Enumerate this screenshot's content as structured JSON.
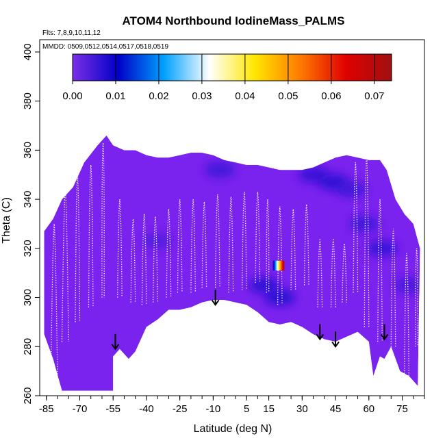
{
  "chart_data": {
    "type": "heatmap",
    "title": "ATOM4 Northbound IodineMass_PALMS",
    "flights_label": "Flts: 7,8,9,10,11,12",
    "dates_label": "MMDD: 0509,0512,0514,0517,0518,0519",
    "xlabel": "Latitude (deg N)",
    "ylabel": "Theta (C)",
    "xlim": [
      -88,
      85
    ],
    "ylim": [
      260,
      405
    ],
    "x_ticks": [
      "-85",
      "-70",
      "-55",
      "-40",
      "-25",
      "-10",
      "5",
      "15",
      "30",
      "45",
      "60",
      "75"
    ],
    "y_ticks": [
      "260",
      "280",
      "300",
      "320",
      "340",
      "360",
      "380",
      "400"
    ],
    "colorbar": {
      "range": [
        0,
        0.074
      ],
      "ticks": [
        "0.00",
        "0.01",
        "0.02",
        "0.03",
        "0.04",
        "0.05",
        "0.06",
        "0.07"
      ],
      "colors": [
        "#7b2fe6",
        "#0000c8",
        "#00a0ff",
        "#ffffff",
        "#ffe600",
        "#ff7a00",
        "#e00000",
        "#a01010"
      ]
    },
    "background_color": "#7a22ee",
    "domain_top": [
      [
        -86,
        327
      ],
      [
        -82,
        332
      ],
      [
        -78,
        340
      ],
      [
        -73,
        345
      ],
      [
        -68,
        355
      ],
      [
        -62,
        362
      ],
      [
        -58,
        366
      ],
      [
        -55,
        362
      ],
      [
        -50,
        360
      ],
      [
        -45,
        360
      ],
      [
        -40,
        358
      ],
      [
        -35,
        357
      ],
      [
        -30,
        357
      ],
      [
        -25,
        358
      ],
      [
        -20,
        359
      ],
      [
        -15,
        359
      ],
      [
        -10,
        358
      ],
      [
        -5,
        356
      ],
      [
        0,
        355
      ],
      [
        5,
        354
      ],
      [
        10,
        354
      ],
      [
        15,
        353
      ],
      [
        20,
        352
      ],
      [
        25,
        352
      ],
      [
        30,
        352
      ],
      [
        35,
        353
      ],
      [
        40,
        355
      ],
      [
        45,
        357
      ],
      [
        50,
        358
      ],
      [
        55,
        357
      ],
      [
        60,
        356
      ],
      [
        65,
        356
      ],
      [
        68,
        352
      ],
      [
        72,
        340
      ],
      [
        76,
        334
      ],
      [
        80,
        330
      ],
      [
        83,
        320
      ]
    ],
    "domain_bottom": [
      [
        -86,
        285
      ],
      [
        -82,
        275
      ],
      [
        -78,
        262
      ],
      [
        -55,
        262
      ],
      [
        -55,
        276
      ],
      [
        -52,
        279
      ],
      [
        -48,
        275
      ],
      [
        -45,
        278
      ],
      [
        -40,
        288
      ],
      [
        -35,
        291
      ],
      [
        -30,
        295
      ],
      [
        -25,
        295
      ],
      [
        -20,
        296
      ],
      [
        -15,
        298
      ],
      [
        -10,
        299
      ],
      [
        -5,
        299
      ],
      [
        0,
        298
      ],
      [
        5,
        297
      ],
      [
        10,
        294
      ],
      [
        15,
        290
      ],
      [
        20,
        289
      ],
      [
        25,
        290
      ],
      [
        30,
        288
      ],
      [
        35,
        285
      ],
      [
        40,
        283
      ],
      [
        45,
        282
      ],
      [
        50,
        284
      ],
      [
        55,
        286
      ],
      [
        60,
        282
      ],
      [
        62,
        268
      ],
      [
        65,
        276
      ],
      [
        67,
        275
      ],
      [
        70,
        280
      ],
      [
        74,
        270
      ],
      [
        78,
        268
      ],
      [
        82,
        264
      ]
    ],
    "hotspots": [
      {
        "lat": -7,
        "theta": 352,
        "value": 0.006
      },
      {
        "lat": 35,
        "theta": 350,
        "value": 0.007
      },
      {
        "lat": 44,
        "theta": 347,
        "value": 0.008
      },
      {
        "lat": 52,
        "theta": 344,
        "value": 0.006
      },
      {
        "lat": 66,
        "theta": 320,
        "value": 0.007
      },
      {
        "lat": 20,
        "theta": 300,
        "value": 0.009
      },
      {
        "lat": 13,
        "theta": 305,
        "value": 0.008
      },
      {
        "lat": -35,
        "theta": 323,
        "value": 0.004
      },
      {
        "lat": 58,
        "theta": 330,
        "value": 0.006
      },
      {
        "lat": 78,
        "theta": 305,
        "value": 0.005
      }
    ],
    "high_value_patch": {
      "lat": [
        16.5,
        22
      ],
      "theta": [
        311,
        315
      ],
      "value_range": [
        0.0,
        0.074
      ]
    },
    "flight_tracks": [
      {
        "lat0": -83,
        "lat1": -80,
        "top": 330,
        "bottom": 268
      },
      {
        "lat0": -78,
        "lat1": -75,
        "top": 345,
        "bottom": 282
      },
      {
        "lat0": -72,
        "lat1": -70,
        "top": 350,
        "bottom": 290
      },
      {
        "lat0": -66,
        "lat1": -64,
        "top": 354,
        "bottom": 296
      },
      {
        "lat0": -60,
        "lat1": -59,
        "top": 363,
        "bottom": 300
      },
      {
        "lat0": -53,
        "lat1": -51,
        "top": 340,
        "bottom": 300
      },
      {
        "lat0": -47,
        "lat1": -45,
        "top": 332,
        "bottom": 298
      },
      {
        "lat0": -42,
        "lat1": -40,
        "top": 334,
        "bottom": 297
      },
      {
        "lat0": -37,
        "lat1": -35,
        "top": 333,
        "bottom": 298
      },
      {
        "lat0": -31,
        "lat1": -29,
        "top": 336,
        "bottom": 300
      },
      {
        "lat0": -26,
        "lat1": -24,
        "top": 340,
        "bottom": 302
      },
      {
        "lat0": -20,
        "lat1": -18,
        "top": 340,
        "bottom": 302
      },
      {
        "lat0": -15,
        "lat1": -13,
        "top": 339,
        "bottom": 304
      },
      {
        "lat0": -9,
        "lat1": -7,
        "top": 342,
        "bottom": 304
      },
      {
        "lat0": -3,
        "lat1": -1,
        "top": 341,
        "bottom": 302
      },
      {
        "lat0": 3,
        "lat1": 5,
        "top": 343,
        "bottom": 303
      },
      {
        "lat0": 9,
        "lat1": 11,
        "top": 343,
        "bottom": 306
      },
      {
        "lat0": 14,
        "lat1": 15,
        "top": 340,
        "bottom": 302
      },
      {
        "lat0": 19,
        "lat1": 21,
        "top": 337,
        "bottom": 297
      },
      {
        "lat0": 25,
        "lat1": 27,
        "top": 336,
        "bottom": 303
      },
      {
        "lat0": 31,
        "lat1": 33,
        "top": 338,
        "bottom": 305
      },
      {
        "lat0": 37,
        "lat1": 39,
        "top": 324,
        "bottom": 296
      },
      {
        "lat0": 43,
        "lat1": 45,
        "top": 324,
        "bottom": 296
      },
      {
        "lat0": 48,
        "lat1": 50,
        "top": 322,
        "bottom": 298
      },
      {
        "lat0": 53,
        "lat1": 55,
        "top": 355,
        "bottom": 302
      },
      {
        "lat0": 58,
        "lat1": 60,
        "top": 358,
        "bottom": 288
      },
      {
        "lat0": 64,
        "lat1": 66,
        "top": 340,
        "bottom": 282
      },
      {
        "lat0": 70,
        "lat1": 72,
        "top": 328,
        "bottom": 280
      },
      {
        "lat0": 76,
        "lat1": 78,
        "top": 318,
        "bottom": 268
      },
      {
        "lat0": 81,
        "lat1": 82,
        "top": 320,
        "bottom": 280
      }
    ],
    "arrows": [
      {
        "lat": -54,
        "theta": 279
      },
      {
        "lat": -9,
        "theta": 297
      },
      {
        "lat": 38,
        "theta": 283
      },
      {
        "lat": 45,
        "theta": 280
      },
      {
        "lat": 67,
        "theta": 283
      }
    ],
    "grid": false,
    "legend": "top colorbar"
  }
}
